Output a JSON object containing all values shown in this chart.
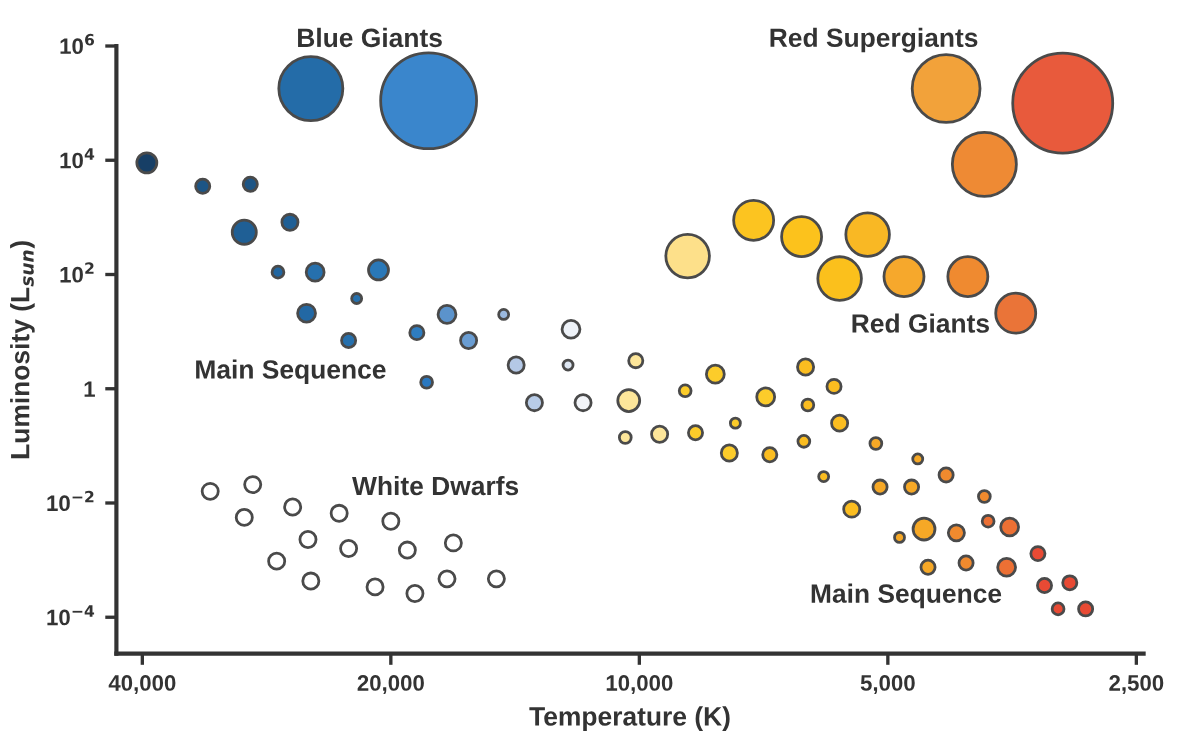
{
  "chart_data": {
    "type": "bubble",
    "xlabel": "Temperature (K)",
    "ylabel": "Luminosity (L$_{sun}$)",
    "log": "xy",
    "xlim": [
      43000,
      2450
    ],
    "ylim": [
      2.3e-05,
      1000000
    ],
    "xticks": [
      {
        "value": 40000,
        "label": "40,000"
      },
      {
        "value": 20000,
        "label": "20,000"
      },
      {
        "value": 10000,
        "label": "10,000"
      },
      {
        "value": 5000,
        "label": "5,000"
      },
      {
        "value": 2500,
        "label": "2,500"
      }
    ],
    "yticks": [
      {
        "value": 0.0001,
        "label": "10$^{−4}$"
      },
      {
        "value": 0.01,
        "label": "10$^{−2}$"
      },
      1,
      {
        "value": 100,
        "label": "10$^{2}$"
      },
      {
        "value": 10000,
        "label": "10$^{4}$"
      },
      {
        "value": 1000000,
        "label": "10$^{6}$"
      }
    ],
    "grid": false,
    "legend": false,
    "annotations": [
      "Blue Giants",
      "Red Supergiants",
      "Main Sequence",
      "Red Giants",
      "White Dwarfs",
      "Main Sequence"
    ],
    "series": [
      {
        "x": [
          25000,
          18000
        ],
        "values": [
          180000,
          110000
        ],
        "sizes": [
          0.41,
          0.92
        ],
        "colors": [
          "#246ca8",
          "#3a86cc"
        ]
      },
      {
        "x": [
          39500,
          33800,
          29600,
          30100,
          26500,
          27400,
          24700,
          20700,
          25300,
          22000,
          22500,
          18600,
          17100,
          16100,
          14600,
          12100,
          14100,
          12200,
          18100,
          13400,
          11700
        ],
        "values": [
          9000,
          3500,
          3800,
          550,
          820,
          110,
          110,
          120,
          21,
          38,
          7.0,
          9.6,
          20,
          7.0,
          20,
          11,
          2.6,
          2.6,
          1.3,
          0.57,
          0.57
        ],
        "sizes": [
          0.04,
          0.02,
          0.02,
          0.058,
          0.026,
          0.014,
          0.032,
          0.04,
          0.032,
          0.01,
          0.02,
          0.02,
          0.032,
          0.026,
          0.01,
          0.032,
          0.026,
          0.01,
          0.014,
          0.026,
          0.026
        ],
        "colors": [
          "#173f66",
          "#1d5585",
          "#1d5585",
          "#1f5f95",
          "#1f5f95",
          "#2266a0",
          "#2670ad",
          "#2a78b8",
          "#2268a4",
          "#2670ad",
          "#2670ad",
          "#2f7dc0",
          "#5b93cc",
          "#6a9dd2",
          "#9ab8de",
          "#eef2f8",
          "#b4c8e6",
          "#dde6f2",
          "#2a78c0",
          "#b8cce8",
          "#f2f4f8"
        ]
      },
      {
        "x": [
          33100,
          29400,
          30100,
          26300,
          23100,
          20000,
          25200,
          22500,
          19100,
          16800,
          27500,
          25000,
          20900,
          18700,
          17100,
          14900
        ],
        "values": [
          0.016,
          0.021,
          0.0056,
          0.0085,
          0.0066,
          0.0048,
          0.0023,
          0.0016,
          0.0015,
          0.002,
          0.00096,
          0.00043,
          0.00034,
          0.00026,
          0.00047,
          0.00047
        ],
        "sizes": [
          0.026,
          0.026,
          0.026,
          0.026,
          0.026,
          0.026,
          0.026,
          0.026,
          0.026,
          0.026,
          0.026,
          0.026,
          0.026,
          0.026,
          0.026,
          0.026
        ],
        "colors": [
          "#ffffff",
          "#ffffff",
          "#ffffff",
          "#ffffff",
          "#ffffff",
          "#ffffff",
          "#ffffff",
          "#ffffff",
          "#ffffff",
          "#ffffff",
          "#ffffff",
          "#ffffff",
          "#ffffff",
          "#ffffff",
          "#ffffff",
          "#ffffff"
        ]
      },
      {
        "x": [
          4250,
          3070,
          3820
        ],
        "values": [
          180000,
          100000,
          8500
        ],
        "sizes": [
          0.46,
          1,
          0.41
        ],
        "colors": [
          "#f2a23a",
          "#e85a3c",
          "#ee8a34"
        ]
      },
      {
        "x": [
          8740,
          7270,
          6360,
          5290,
          5720,
          4780,
          4000,
          3500
        ],
        "values": [
          210,
          890,
          460,
          500,
          85,
          92,
          92,
          21
        ],
        "sizes": [
          0.19,
          0.16,
          0.16,
          0.19,
          0.19,
          0.16,
          0.16,
          0.16
        ],
        "colors": [
          "#fde08a",
          "#fcc420",
          "#fcc21c",
          "#f9b824",
          "#fbc01c",
          "#f6a82c",
          "#ef8a30",
          "#ea7438"
        ]
      },
      {
        "x": [
          10100,
          8090,
          6290,
          5810,
          8800,
          7030,
          10300,
          6250,
          5720,
          7650,
          10400,
          9450,
          8550,
          6320,
          5170,
          7780,
          6950,
          4600,
          5980,
          4250,
          5110,
          4680,
          3820,
          5530,
          3780,
          3560,
          4840,
          4520,
          4130,
          3290,
          4470,
          4020,
          3590,
          3230,
          3010,
          3110,
          2880
        ],
        "values": [
          3.1,
          1.8,
          2.4,
          1.1,
          0.92,
          0.72,
          0.62,
          0.52,
          0.25,
          0.25,
          0.14,
          0.16,
          0.17,
          0.12,
          0.11,
          0.075,
          0.07,
          0.059,
          0.029,
          0.031,
          0.019,
          0.019,
          0.013,
          0.0078,
          0.0048,
          0.0038,
          0.0025,
          0.0035,
          0.003,
          0.0013,
          0.00075,
          0.00089,
          0.00075,
          0.00036,
          0.0004,
          0.00014,
          0.00014
        ],
        "sizes": [
          0.02,
          0.032,
          0.026,
          0.02,
          0.014,
          0.032,
          0.048,
          0.014,
          0.026,
          0.01,
          0.014,
          0.026,
          0.02,
          0.014,
          0.014,
          0.026,
          0.02,
          0.01,
          0.01,
          0.02,
          0.02,
          0.02,
          0.014,
          0.026,
          0.014,
          0.032,
          0.01,
          0.048,
          0.026,
          0.02,
          0.02,
          0.02,
          0.032,
          0.02,
          0.02,
          0.014,
          0.02
        ],
        "colors": [
          "#fde69a",
          "#fccc2a",
          "#fbbd20",
          "#fbbd20",
          "#fccc2a",
          "#fccc2a",
          "#fde69a",
          "#fbbd20",
          "#fbbd20",
          "#fccc2a",
          "#fde69a",
          "#fde69a",
          "#fccc2a",
          "#fbbd20",
          "#f6a826",
          "#fccc2a",
          "#fbbd20",
          "#f6a826",
          "#fbbd20",
          "#f08a2e",
          "#f6a826",
          "#f6a826",
          "#f08a2e",
          "#fbbd20",
          "#ec7034",
          "#ec7034",
          "#f6a826",
          "#f6a826",
          "#f08a2e",
          "#e84a34",
          "#f6a826",
          "#f08a2e",
          "#ec7034",
          "#e84a34",
          "#e84a34",
          "#e84a34",
          "#e84a34"
        ]
      }
    ]
  }
}
